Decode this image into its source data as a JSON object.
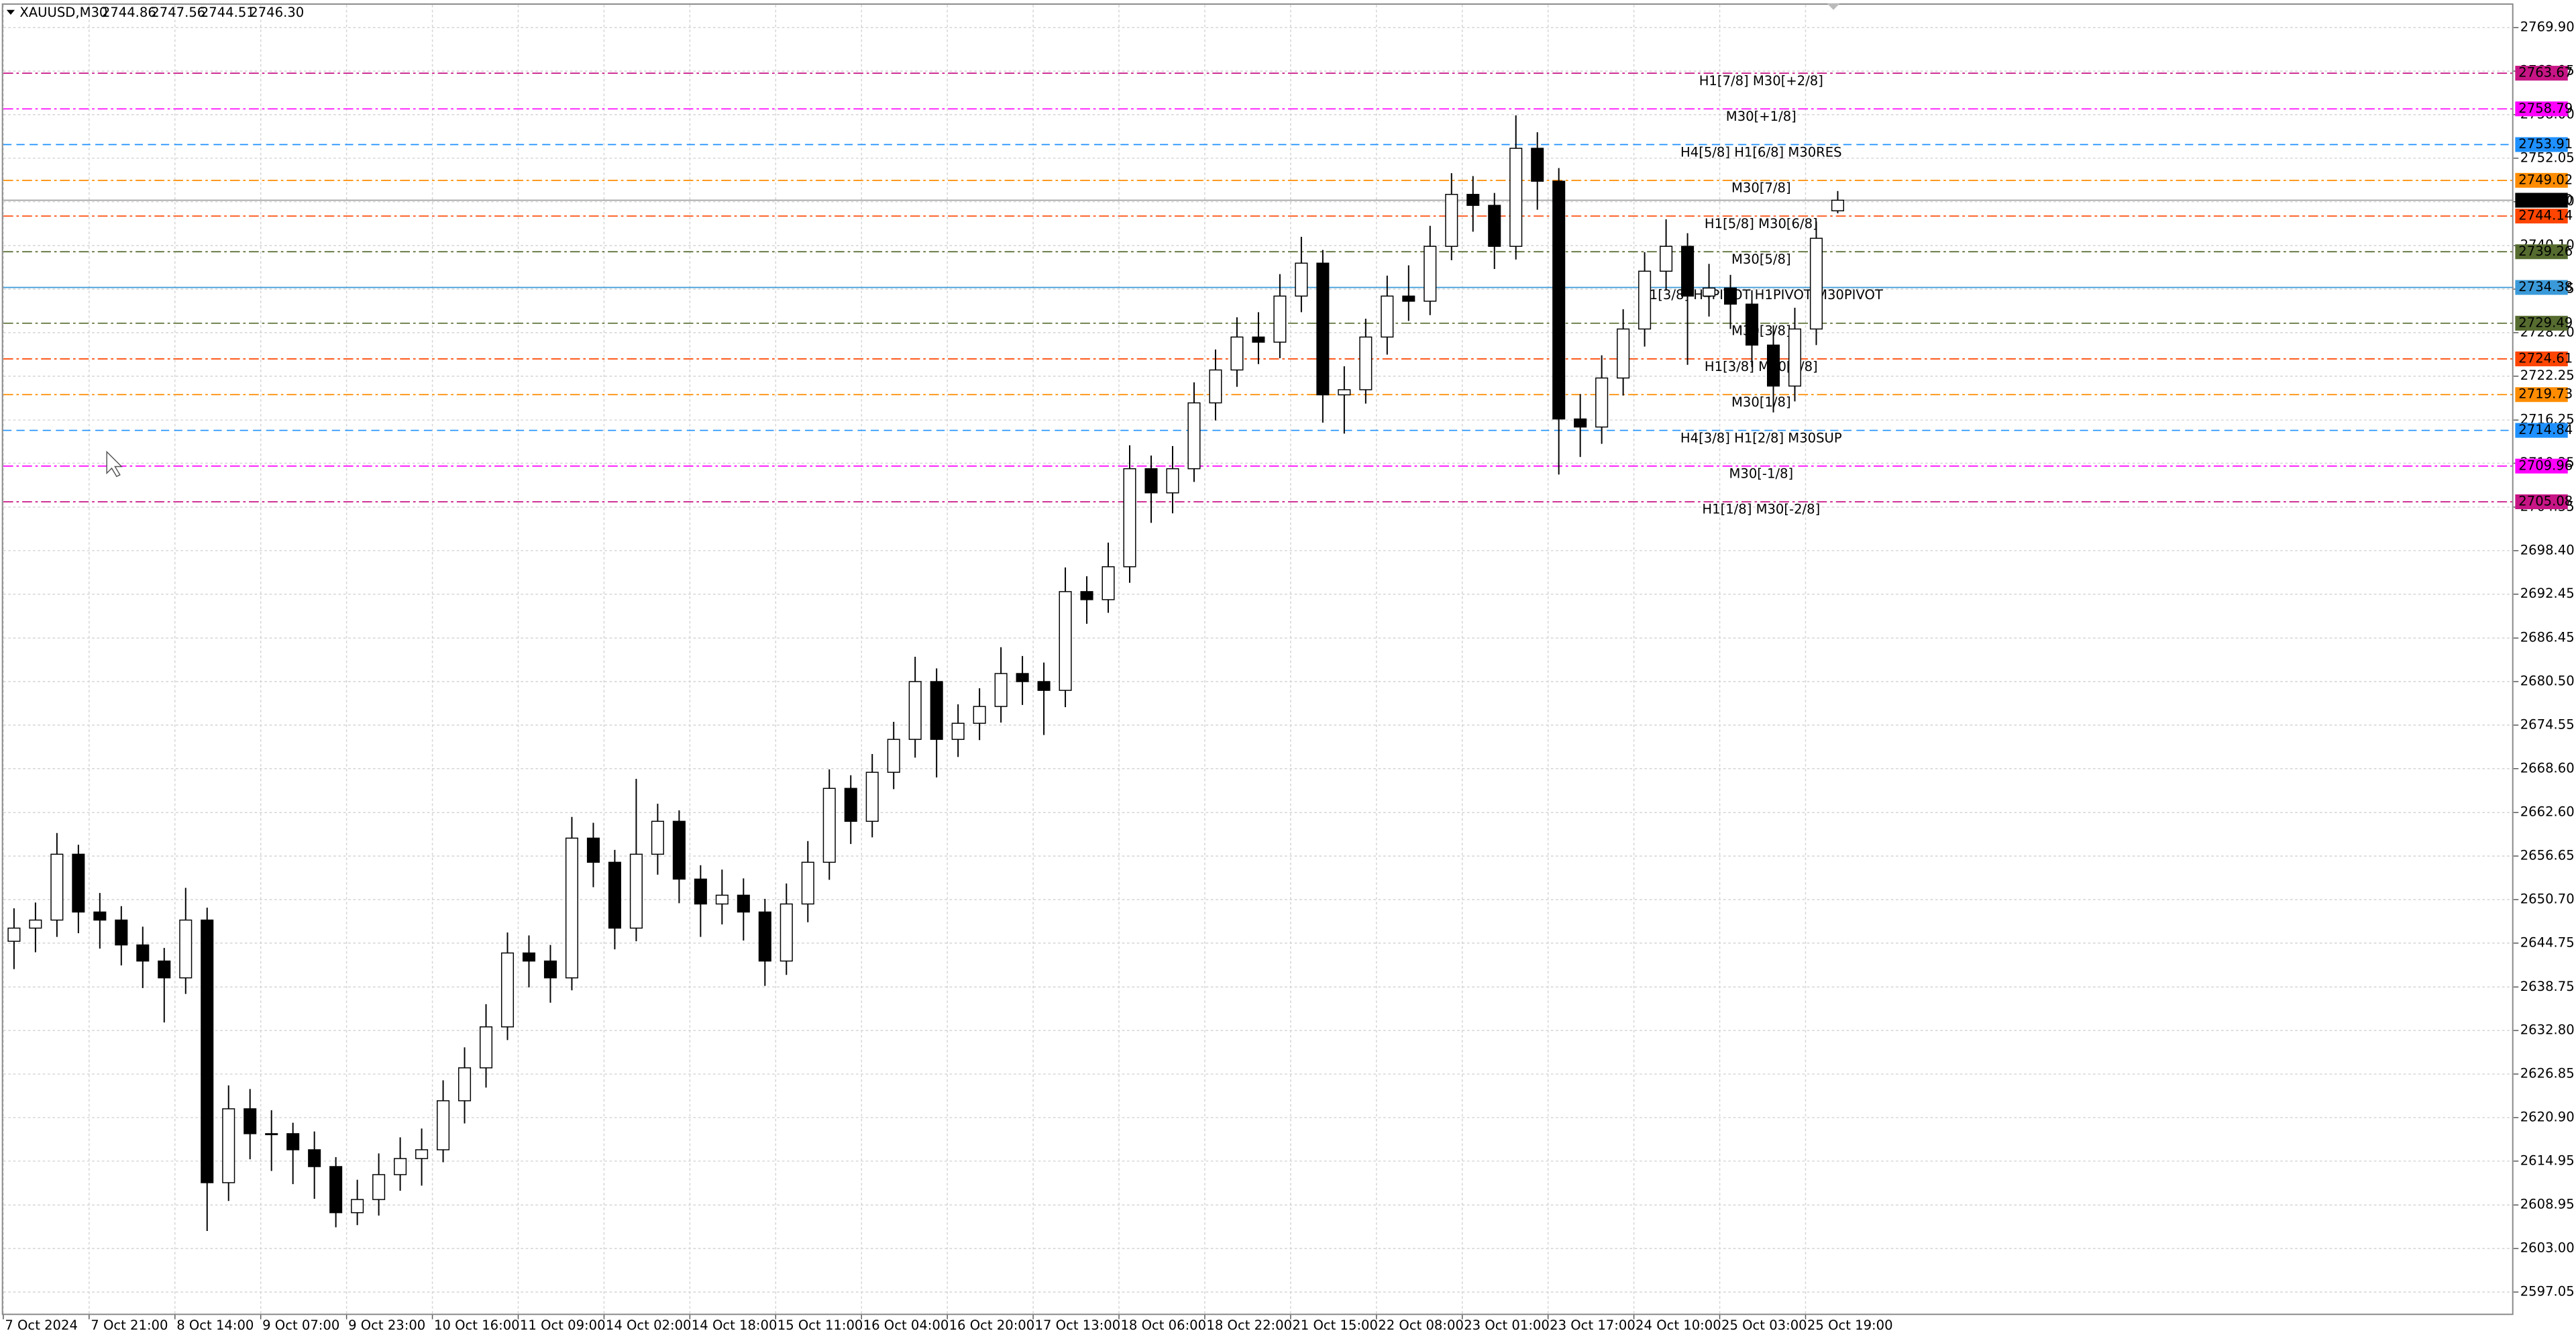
{
  "chart_data": {
    "type": "candlestick",
    "title": "XAUUSD,M30",
    "header_values": [
      "2744.86",
      "2747.56",
      "2744.51",
      "2746.30"
    ],
    "bid": {
      "value": 2746.3,
      "label": "2746.30"
    },
    "bull_color": "#ffffff",
    "bear_color": "#000000",
    "outline_color": "#000000",
    "grid": true,
    "xlim": [
      0,
      117
    ],
    "ylim": [
      2594.0,
      2773.0
    ],
    "xticks": [
      {
        "value": 0,
        "label": "7 Oct 2024"
      },
      {
        "value": 4,
        "label": "7 Oct 21:00"
      },
      {
        "value": 8,
        "label": "8 Oct 14:00"
      },
      {
        "value": 12,
        "label": "9 Oct 07:00"
      },
      {
        "value": 16,
        "label": "9 Oct 23:00"
      },
      {
        "value": 20,
        "label": "10 Oct 16:00"
      },
      {
        "value": 24,
        "label": "11 Oct 09:00"
      },
      {
        "value": 28,
        "label": "14 Oct 02:00"
      },
      {
        "value": 32,
        "label": "14 Oct 18:00"
      },
      {
        "value": 36,
        "label": "15 Oct 11:00"
      },
      {
        "value": 40,
        "label": "16 Oct 04:00"
      },
      {
        "value": 44,
        "label": "16 Oct 20:00"
      },
      {
        "value": 48,
        "label": "17 Oct 13:00"
      },
      {
        "value": 52,
        "label": "18 Oct 06:00"
      },
      {
        "value": 56,
        "label": "18 Oct 22:00"
      },
      {
        "value": 60,
        "label": "21 Oct 15:00"
      },
      {
        "value": 64,
        "label": "22 Oct 08:00"
      },
      {
        "value": 68,
        "label": "23 Oct 01:00"
      },
      {
        "value": 72,
        "label": "23 Oct 17:00"
      },
      {
        "value": 76,
        "label": "24 Oct 10:00"
      },
      {
        "value": 80,
        "label": "25 Oct 03:00"
      },
      {
        "value": 84,
        "label": "25 Oct 19:00"
      }
    ],
    "yticks": [
      {
        "value": 2597.05,
        "label": "2597.05"
      },
      {
        "value": 2603,
        "label": "2603.00"
      },
      {
        "value": 2608.95,
        "label": "2608.95"
      },
      {
        "value": 2614.95,
        "label": "2614.95"
      },
      {
        "value": 2620.9,
        "label": "2620.90"
      },
      {
        "value": 2626.85,
        "label": "2626.85"
      },
      {
        "value": 2632.8,
        "label": "2632.80"
      },
      {
        "value": 2638.75,
        "label": "2638.75"
      },
      {
        "value": 2644.75,
        "label": "2644.75"
      },
      {
        "value": 2650.7,
        "label": "2650.70"
      },
      {
        "value": 2656.65,
        "label": "2656.65"
      },
      {
        "value": 2662.6,
        "label": "2662.60"
      },
      {
        "value": 2668.6,
        "label": "2668.60"
      },
      {
        "value": 2674.55,
        "label": "2674.55"
      },
      {
        "value": 2680.5,
        "label": "2680.50"
      },
      {
        "value": 2686.45,
        "label": "2686.45"
      },
      {
        "value": 2692.45,
        "label": "2692.45"
      },
      {
        "value": 2698.4,
        "label": "2698.40"
      },
      {
        "value": 2704.35,
        "label": "2704.35"
      },
      {
        "value": 2710.35,
        "label": "2710.35"
      },
      {
        "value": 2716.25,
        "label": "2716.25"
      },
      {
        "value": 2722.25,
        "label": "2722.25"
      },
      {
        "value": 2728.2,
        "label": "2728.20"
      },
      {
        "value": 2734.15,
        "label": "2734.15"
      },
      {
        "value": 2740.1,
        "label": "2740.10"
      },
      {
        "value": 2746.1,
        "label": "2746.10"
      },
      {
        "value": 2752.05,
        "label": "2752.05"
      },
      {
        "value": 2758,
        "label": "2758.00"
      },
      {
        "value": 2763.95,
        "label": "2763.95"
      },
      {
        "value": 2769.9,
        "label": "2769.90"
      }
    ],
    "levels": [
      {
        "name": "H1[7/8] M30[+2/8]",
        "value": 2763.67,
        "color": "#c71585",
        "dash": "dashdot"
      },
      {
        "name": "M30[+1/8]",
        "value": 2758.79,
        "color": "#ff00ff",
        "dash": "dashdot"
      },
      {
        "name": "H4[5/8] H1[6/8] M30RES",
        "value": 2753.91,
        "color": "#1e90ff",
        "dash": "dash"
      },
      {
        "name": "M30[7/8]",
        "value": 2749.02,
        "color": "#ff8c00",
        "dash": "dashdot"
      },
      {
        "name": "H1[5/8] M30[6/8]",
        "value": 2744.14,
        "color": "#ff4500",
        "dash": "dashdot"
      },
      {
        "name": "M30[5/8]",
        "value": 2739.26,
        "color": "#556b2f",
        "dash": "dashdot"
      },
      {
        "name": "D1[3/8] H4PIVOT H1PIVOT M30PIVOT",
        "value": 2734.38,
        "color": "#3a9ad9",
        "dash": "solid"
      },
      {
        "name": "M30[3/8]",
        "value": 2729.49,
        "color": "#556b2f",
        "dash": "dashdot"
      },
      {
        "name": "H1[3/8] M30[2/8]",
        "value": 2724.61,
        "color": "#ff4500",
        "dash": "dashdot"
      },
      {
        "name": "M30[1/8]",
        "value": 2719.73,
        "color": "#ff8c00",
        "dash": "dashdot"
      },
      {
        "name": "H4[3/8] H1[2/8] M30SUP",
        "value": 2714.84,
        "color": "#1e90ff",
        "dash": "dash"
      },
      {
        "name": "M30[-1/8]",
        "value": 2709.96,
        "color": "#ff00ff",
        "dash": "dashdot"
      },
      {
        "name": "H1[1/8] M30[-2/8]",
        "value": 2705.08,
        "color": "#c71585",
        "dash": "dashdot"
      }
    ],
    "candles": [
      [
        2645.0,
        2649.5,
        2641.2,
        2646.8
      ],
      [
        2646.8,
        2650.3,
        2643.5,
        2647.9
      ],
      [
        2647.9,
        2659.8,
        2645.6,
        2656.9
      ],
      [
        2656.9,
        2658.2,
        2646.1,
        2649.0
      ],
      [
        2649.0,
        2651.6,
        2644.0,
        2647.9
      ],
      [
        2647.9,
        2649.8,
        2641.7,
        2644.5
      ],
      [
        2644.5,
        2647.0,
        2638.6,
        2642.3
      ],
      [
        2642.3,
        2644.1,
        2633.9,
        2640.0
      ],
      [
        2640.0,
        2652.3,
        2637.8,
        2647.9
      ],
      [
        2647.9,
        2649.6,
        2605.4,
        2612.0
      ],
      [
        2612.0,
        2625.3,
        2609.5,
        2622.1
      ],
      [
        2622.1,
        2624.8,
        2615.2,
        2618.7
      ],
      [
        2618.7,
        2621.9,
        2613.6,
        2618.7
      ],
      [
        2618.7,
        2620.2,
        2611.8,
        2616.5
      ],
      [
        2616.5,
        2619.0,
        2609.8,
        2614.2
      ],
      [
        2614.2,
        2615.5,
        2605.9,
        2607.9
      ],
      [
        2607.9,
        2612.4,
        2606.2,
        2609.7
      ],
      [
        2609.7,
        2616.0,
        2607.5,
        2613.1
      ],
      [
        2613.1,
        2618.2,
        2610.9,
        2615.3
      ],
      [
        2615.3,
        2619.4,
        2611.6,
        2616.5
      ],
      [
        2616.5,
        2626.0,
        2614.8,
        2623.2
      ],
      [
        2623.2,
        2630.5,
        2620.1,
        2627.7
      ],
      [
        2627.7,
        2636.4,
        2625.0,
        2633.3
      ],
      [
        2633.3,
        2646.2,
        2631.5,
        2643.4
      ],
      [
        2643.4,
        2645.8,
        2638.7,
        2642.3
      ],
      [
        2642.3,
        2644.5,
        2636.6,
        2640.0
      ],
      [
        2640.0,
        2662.0,
        2638.3,
        2659.1
      ],
      [
        2659.1,
        2661.2,
        2652.4,
        2655.8
      ],
      [
        2655.8,
        2657.5,
        2643.9,
        2646.8
      ],
      [
        2646.8,
        2667.2,
        2645.0,
        2656.9
      ],
      [
        2656.9,
        2663.8,
        2654.1,
        2661.4
      ],
      [
        2661.4,
        2662.9,
        2650.2,
        2653.5
      ],
      [
        2653.5,
        2655.4,
        2645.6,
        2650.1
      ],
      [
        2650.1,
        2654.8,
        2647.3,
        2651.3
      ],
      [
        2651.3,
        2653.6,
        2645.1,
        2649.0
      ],
      [
        2649.0,
        2650.8,
        2638.9,
        2642.3
      ],
      [
        2642.3,
        2652.9,
        2640.4,
        2650.1
      ],
      [
        2650.1,
        2658.7,
        2647.6,
        2655.8
      ],
      [
        2655.8,
        2668.5,
        2653.4,
        2665.9
      ],
      [
        2665.9,
        2667.7,
        2658.3,
        2661.4
      ],
      [
        2661.4,
        2670.6,
        2659.2,
        2668.1
      ],
      [
        2668.1,
        2675.0,
        2665.8,
        2672.6
      ],
      [
        2672.6,
        2683.9,
        2670.1,
        2680.5
      ],
      [
        2680.5,
        2682.3,
        2667.4,
        2672.6
      ],
      [
        2672.6,
        2677.4,
        2670.2,
        2674.8
      ],
      [
        2674.8,
        2679.6,
        2672.5,
        2677.1
      ],
      [
        2677.1,
        2685.2,
        2674.9,
        2681.6
      ],
      [
        2681.6,
        2684.0,
        2677.3,
        2680.5
      ],
      [
        2680.5,
        2683.1,
        2673.2,
        2679.3
      ],
      [
        2679.3,
        2696.1,
        2677.0,
        2692.8
      ],
      [
        2692.8,
        2694.9,
        2688.4,
        2691.7
      ],
      [
        2691.7,
        2699.5,
        2689.9,
        2696.2
      ],
      [
        2696.2,
        2712.8,
        2694.0,
        2709.6
      ],
      [
        2709.6,
        2711.4,
        2702.2,
        2706.3
      ],
      [
        2706.3,
        2712.7,
        2703.5,
        2709.6
      ],
      [
        2709.6,
        2721.4,
        2707.8,
        2718.6
      ],
      [
        2718.6,
        2725.9,
        2716.2,
        2723.1
      ],
      [
        2723.1,
        2730.3,
        2720.8,
        2727.6
      ],
      [
        2727.6,
        2731.0,
        2723.9,
        2726.9
      ],
      [
        2726.9,
        2736.2,
        2724.7,
        2733.2
      ],
      [
        2733.2,
        2741.3,
        2731.0,
        2737.7
      ],
      [
        2737.7,
        2739.5,
        2715.9,
        2719.7
      ],
      [
        2719.7,
        2723.6,
        2714.4,
        2720.4
      ],
      [
        2720.4,
        2730.1,
        2718.5,
        2727.6
      ],
      [
        2727.6,
        2736.0,
        2725.2,
        2733.2
      ],
      [
        2733.2,
        2737.4,
        2729.8,
        2732.5
      ],
      [
        2732.5,
        2742.8,
        2730.6,
        2740.0
      ],
      [
        2740.0,
        2750.0,
        2738.1,
        2747.1
      ],
      [
        2747.1,
        2749.6,
        2742.0,
        2745.6
      ],
      [
        2745.6,
        2747.3,
        2736.9,
        2740.0
      ],
      [
        2740.0,
        2757.9,
        2738.2,
        2753.4
      ],
      [
        2753.4,
        2755.6,
        2745.0,
        2748.9
      ],
      [
        2748.9,
        2750.7,
        2708.8,
        2716.4
      ],
      [
        2716.4,
        2719.8,
        2711.2,
        2715.3
      ],
      [
        2715.3,
        2725.1,
        2713.0,
        2722.0
      ],
      [
        2722.0,
        2731.4,
        2719.6,
        2728.7
      ],
      [
        2728.7,
        2739.2,
        2726.3,
        2736.6
      ],
      [
        2736.6,
        2743.7,
        2734.1,
        2740.0
      ],
      [
        2740.0,
        2741.8,
        2723.8,
        2733.2
      ],
      [
        2733.2,
        2737.6,
        2730.4,
        2734.3
      ],
      [
        2734.3,
        2736.1,
        2728.7,
        2732.1
      ],
      [
        2732.1,
        2734.0,
        2723.5,
        2726.5
      ],
      [
        2726.5,
        2729.2,
        2717.3,
        2720.9
      ],
      [
        2720.9,
        2731.6,
        2718.8,
        2728.7
      ],
      [
        2728.7,
        2743.4,
        2726.5,
        2741.1
      ],
      [
        2744.86,
        2747.56,
        2744.51,
        2746.3
      ]
    ]
  }
}
